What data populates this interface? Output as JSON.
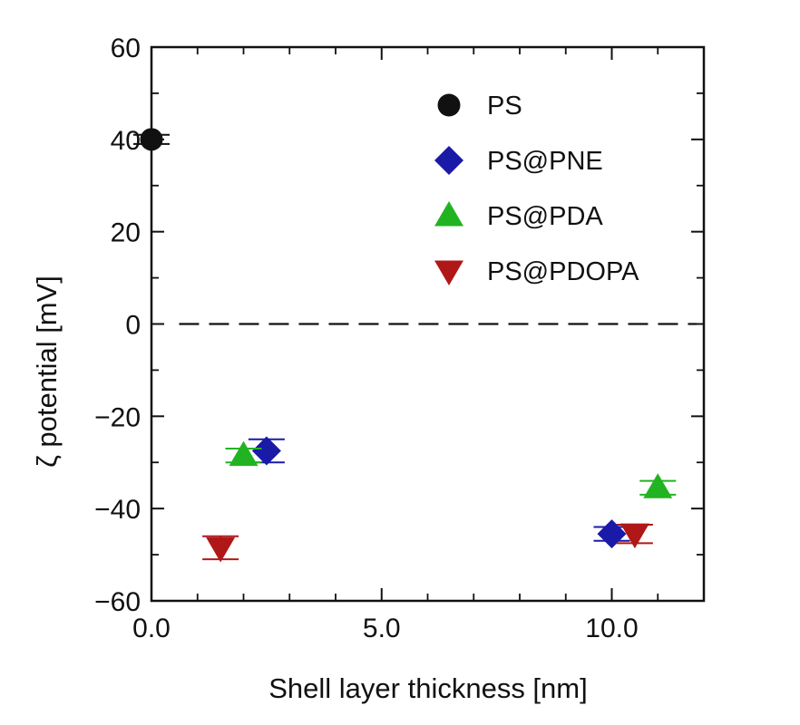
{
  "chart_data": {
    "type": "scatter",
    "xlabel": "Shell layer thickness [nm]",
    "ylabel": "ζ potential [mV]",
    "xlim": [
      0,
      12
    ],
    "ylim": [
      -60,
      60
    ],
    "x_ticks": [
      {
        "value": 0,
        "label": "0.0"
      },
      {
        "value": 5,
        "label": "5.0"
      },
      {
        "value": 10,
        "label": "10.0"
      }
    ],
    "y_ticks": [
      {
        "value": 60,
        "label": "60"
      },
      {
        "value": 40,
        "label": "40"
      },
      {
        "value": 20,
        "label": "20"
      },
      {
        "value": 0,
        "label": "0"
      },
      {
        "value": -20,
        "label": "−20"
      },
      {
        "value": -40,
        "label": "−40"
      },
      {
        "value": -60,
        "label": "−60"
      }
    ],
    "reference_line": {
      "y": 0,
      "style": "dashed"
    },
    "legend_position": "top-right",
    "grid": false,
    "series": [
      {
        "name": "PS",
        "marker": "circle",
        "color": "#111111",
        "points": [
          {
            "x": 0,
            "y": 40,
            "err": 1
          }
        ]
      },
      {
        "name": "PS@PNE",
        "marker": "diamond",
        "color": "#1a1aa8",
        "points": [
          {
            "x": 2.5,
            "y": -27.5,
            "err": 2.5
          },
          {
            "x": 10,
            "y": -45.5,
            "err": 1.5
          }
        ]
      },
      {
        "name": "PS@PDA",
        "marker": "triangle-up",
        "color": "#22b322",
        "points": [
          {
            "x": 2,
            "y": -28.5,
            "err": 1.5
          },
          {
            "x": 11,
            "y": -35.5,
            "err": 1.5
          }
        ]
      },
      {
        "name": "PS@PDOPA",
        "marker": "triangle-down",
        "color": "#b01818",
        "points": [
          {
            "x": 1.5,
            "y": -48.5,
            "err": 2.5
          },
          {
            "x": 10.5,
            "y": -45.5,
            "err": 2
          }
        ]
      }
    ]
  }
}
